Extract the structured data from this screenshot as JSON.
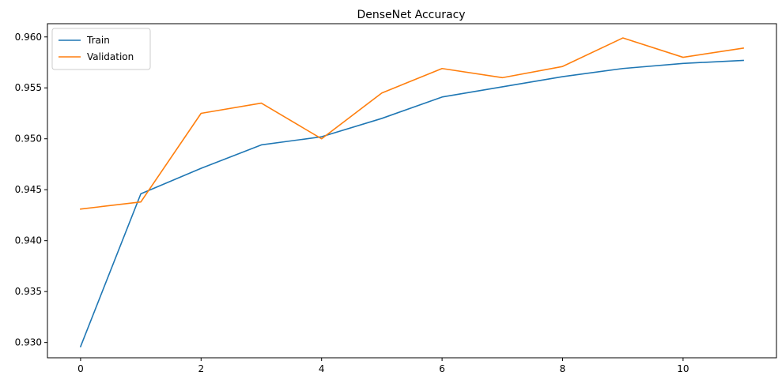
{
  "chart_data": {
    "type": "line",
    "title": "DenseNet Accuracy",
    "xlabel": "",
    "ylabel": "",
    "xlim": [
      -0.55,
      11.55
    ],
    "ylim": [
      0.9285,
      0.9613
    ],
    "xticks": [
      0,
      2,
      4,
      6,
      8,
      10
    ],
    "xtick_labels": [
      "0",
      "2",
      "4",
      "6",
      "8",
      "10"
    ],
    "yticks": [
      0.93,
      0.935,
      0.94,
      0.945,
      0.95,
      0.955,
      0.96
    ],
    "ytick_labels": [
      "0.930",
      "0.935",
      "0.940",
      "0.945",
      "0.950",
      "0.955",
      "0.960"
    ],
    "grid": false,
    "legend": "top-left",
    "x": [
      0,
      1,
      2,
      3,
      4,
      5,
      6,
      7,
      8,
      9,
      10,
      11
    ],
    "series": [
      {
        "name": "Train",
        "color": "#1f77b4",
        "values": [
          0.9296,
          0.9446,
          0.9471,
          0.9494,
          0.9502,
          0.952,
          0.9541,
          0.9551,
          0.9561,
          0.9569,
          0.9574,
          0.9577
        ]
      },
      {
        "name": "Validation",
        "color": "#ff7f0e",
        "values": [
          0.9431,
          0.9438,
          0.9525,
          0.9535,
          0.95,
          0.9545,
          0.9569,
          0.956,
          0.9571,
          0.9599,
          0.958,
          0.9589
        ]
      }
    ]
  }
}
